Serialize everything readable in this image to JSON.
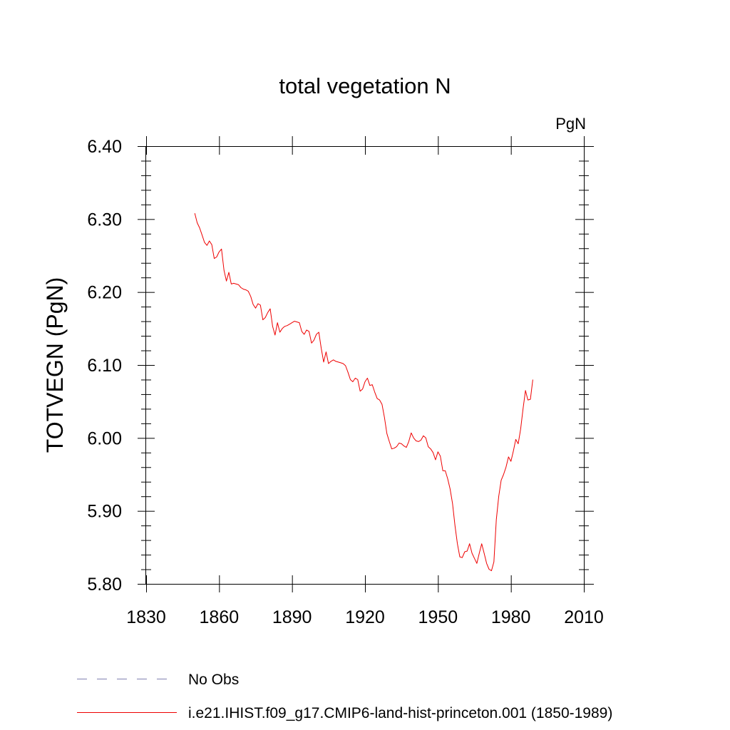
{
  "chart_data": {
    "type": "line",
    "title": "total vegetation N",
    "units_label": "PgN",
    "ylabel": "TOTVEGN  (PgN)",
    "xlabel": "",
    "xlim": [
      1830,
      2010
    ],
    "ylim": [
      5.8,
      6.4
    ],
    "x_ticks": [
      1830,
      1860,
      1890,
      1920,
      1950,
      1980,
      2010
    ],
    "x_tick_labels": [
      "1830",
      "1860",
      "1890",
      "1920",
      "1950",
      "1980",
      "2010"
    ],
    "y_ticks": [
      5.8,
      5.9,
      6.0,
      6.1,
      6.2,
      6.3,
      6.4
    ],
    "y_tick_labels": [
      "5.80",
      "5.90",
      "6.00",
      "6.10",
      "6.20",
      "6.30",
      "6.40"
    ],
    "grid": false,
    "legend_position": "bottom",
    "series": [
      {
        "name": "No Obs",
        "color": "#8080b0",
        "dash": true,
        "x": [],
        "y": []
      },
      {
        "name": "i.e21.IHIST.f09_g17.CMIP6-land-hist-princeton.001 (1850-1989)",
        "color": "#ee0000",
        "dash": false,
        "x": [
          1850,
          1851,
          1852,
          1853,
          1854,
          1855,
          1856,
          1857,
          1858,
          1859,
          1860,
          1861,
          1862,
          1863,
          1864,
          1865,
          1866,
          1867,
          1868,
          1869,
          1870,
          1871,
          1872,
          1873,
          1874,
          1875,
          1876,
          1877,
          1878,
          1879,
          1880,
          1881,
          1882,
          1883,
          1884,
          1885,
          1886,
          1887,
          1888,
          1889,
          1890,
          1891,
          1892,
          1893,
          1894,
          1895,
          1896,
          1897,
          1898,
          1899,
          1900,
          1901,
          1902,
          1903,
          1904,
          1905,
          1906,
          1907,
          1908,
          1909,
          1910,
          1911,
          1912,
          1913,
          1914,
          1915,
          1916,
          1917,
          1918,
          1919,
          1920,
          1921,
          1922,
          1923,
          1924,
          1925,
          1926,
          1927,
          1928,
          1929,
          1930,
          1931,
          1932,
          1933,
          1934,
          1935,
          1936,
          1937,
          1938,
          1939,
          1940,
          1941,
          1942,
          1943,
          1944,
          1945,
          1946,
          1947,
          1948,
          1949,
          1950,
          1951,
          1952,
          1953,
          1954,
          1955,
          1956,
          1957,
          1958,
          1959,
          1960,
          1961,
          1962,
          1963,
          1964,
          1965,
          1966,
          1967,
          1968,
          1969,
          1970,
          1971,
          1972,
          1973,
          1974,
          1975,
          1976,
          1977,
          1978,
          1979,
          1980,
          1981,
          1982,
          1983,
          1984,
          1985,
          1986,
          1987,
          1988,
          1989
        ],
        "y": [
          6.308,
          6.295,
          6.288,
          6.278,
          6.268,
          6.264,
          6.27,
          6.265,
          6.246,
          6.248,
          6.255,
          6.259,
          6.23,
          6.215,
          6.227,
          6.211,
          6.212,
          6.211,
          6.21,
          6.206,
          6.204,
          6.203,
          6.201,
          6.194,
          6.183,
          6.178,
          6.184,
          6.182,
          6.162,
          6.165,
          6.172,
          6.177,
          6.153,
          6.141,
          6.158,
          6.145,
          6.15,
          6.153,
          6.154,
          6.156,
          6.158,
          6.16,
          6.159,
          6.158,
          6.146,
          6.142,
          6.148,
          6.146,
          6.13,
          6.134,
          6.142,
          6.145,
          6.123,
          6.104,
          6.118,
          6.102,
          6.105,
          6.107,
          6.105,
          6.104,
          6.103,
          6.102,
          6.099,
          6.09,
          6.08,
          6.077,
          6.082,
          6.08,
          6.064,
          6.067,
          6.077,
          6.082,
          6.072,
          6.073,
          6.063,
          6.054,
          6.052,
          6.046,
          6.028,
          6.006,
          5.995,
          5.985,
          5.986,
          5.988,
          5.993,
          5.992,
          5.989,
          5.987,
          5.995,
          6.007,
          6.0,
          5.996,
          5.995,
          5.997,
          6.003,
          6.0,
          5.988,
          5.985,
          5.98,
          5.97,
          5.981,
          5.975,
          5.955,
          5.955,
          5.944,
          5.93,
          5.91,
          5.88,
          5.855,
          5.837,
          5.836,
          5.844,
          5.845,
          5.855,
          5.842,
          5.835,
          5.828,
          5.842,
          5.855,
          5.842,
          5.828,
          5.82,
          5.818,
          5.83,
          5.888,
          5.92,
          5.942,
          5.95,
          5.96,
          5.974,
          5.968,
          5.982,
          5.998,
          5.992,
          6.012,
          6.04,
          6.065,
          6.052,
          6.053,
          6.08
        ]
      }
    ]
  }
}
